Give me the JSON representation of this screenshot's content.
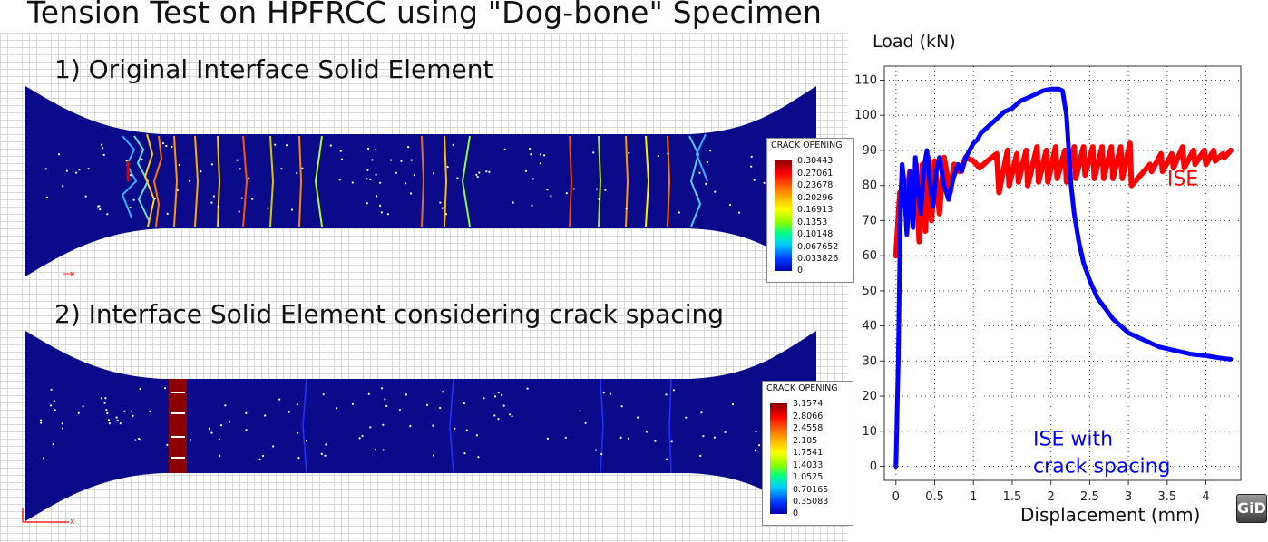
{
  "title": "Tension Test on HPFRCC using \"Dog-bone\" Specimen",
  "panel1": {
    "label": "1) Original Interface Solid Element",
    "legend_title": "CRACK OPENING",
    "legend_values": [
      "0.30443",
      "0.27061",
      "0.23678",
      "0.20296",
      "0.16913",
      "0.1353",
      "0.10148",
      "0.067652",
      "0.033826",
      "0"
    ]
  },
  "panel2": {
    "label": "2) Interface Solid Element considering crack spacing",
    "legend_title": "CRACK OPENING",
    "legend_values": [
      "3.1574",
      "2.8066",
      "2.4558",
      "2.105",
      "1.7541",
      "1.4033",
      "1.0525",
      "0.70165",
      "0.35083",
      "0"
    ]
  },
  "colors": {
    "specimen": "#0a0a8a",
    "ise": "#ff0000",
    "ise_cs": "#0000ff"
  },
  "badge": "GiD",
  "chart_data": {
    "type": "line",
    "xlabel": "Displacement (mm)",
    "ylabel": "Load (kN)",
    "xlim": [
      -0.15,
      4.45
    ],
    "ylim": [
      -4,
      114
    ],
    "xticks": [
      0,
      0.5,
      1,
      1.5,
      2,
      2.5,
      3,
      3.5,
      4
    ],
    "xtick_labels": [
      "0",
      "0.5",
      "1",
      "1.5",
      "2",
      "2.5",
      "3",
      "3.5",
      "4"
    ],
    "yticks": [
      0,
      10,
      20,
      30,
      40,
      50,
      60,
      70,
      80,
      90,
      100,
      110
    ],
    "ytick_labels": [
      "0",
      "10",
      "20",
      "30",
      "40",
      "50",
      "60",
      "70",
      "80",
      "90",
      "100",
      "110"
    ],
    "grid": true,
    "series": [
      {
        "name": "ISE",
        "label_lines": [
          "ISE"
        ],
        "label_at": [
          3.5,
          80
        ],
        "color": "#ff0000",
        "x": [
          0,
          0.05,
          0.12,
          0.18,
          0.22,
          0.26,
          0.3,
          0.34,
          0.38,
          0.42,
          0.46,
          0.5,
          0.56,
          0.62,
          0.7,
          0.75,
          0.82,
          0.9,
          1.0,
          1.08,
          1.18,
          1.3,
          1.33,
          1.44,
          1.46,
          1.56,
          1.58,
          1.68,
          1.7,
          1.82,
          1.84,
          1.94,
          1.96,
          2.06,
          2.08,
          2.18,
          2.2,
          2.3,
          2.32,
          2.42,
          2.44,
          2.54,
          2.56,
          2.66,
          2.68,
          2.78,
          2.8,
          2.9,
          2.92,
          3.02,
          3.04,
          3.28,
          3.3,
          3.42,
          3.44,
          3.56,
          3.58,
          3.7,
          3.72,
          3.84,
          3.86,
          3.98,
          4.0,
          4.1,
          4.12,
          4.22,
          4.24,
          4.32
        ],
        "y": [
          60,
          78,
          74,
          84,
          76,
          86,
          64,
          86,
          67,
          88,
          70,
          87,
          72,
          88,
          78,
          86,
          84,
          88,
          87,
          85,
          87,
          89,
          78,
          90,
          80,
          89,
          81,
          90,
          80,
          91,
          81,
          90,
          81,
          91,
          82,
          90,
          81,
          91,
          82,
          91,
          83,
          91,
          82,
          91,
          82,
          91,
          82,
          91,
          82,
          92,
          80,
          86,
          84,
          89,
          84,
          89,
          85,
          91,
          85,
          90,
          86,
          90,
          86,
          90,
          87,
          89,
          88,
          90
        ]
      },
      {
        "name": "ISE with crack spacing",
        "label_lines": [
          "ISE with",
          "crack spacing"
        ],
        "label_at": [
          1.77,
          6
        ],
        "color": "#0000ff",
        "x": [
          0,
          0.01,
          0.02,
          0.03,
          0.04,
          0.05,
          0.06,
          0.08,
          0.1,
          0.12,
          0.14,
          0.16,
          0.18,
          0.2,
          0.22,
          0.25,
          0.28,
          0.32,
          0.36,
          0.4,
          0.44,
          0.48,
          0.52,
          0.56,
          0.62,
          0.68,
          0.74,
          0.8,
          0.85,
          0.9,
          0.95,
          1.0,
          1.05,
          1.1,
          1.2,
          1.3,
          1.4,
          1.5,
          1.6,
          1.7,
          1.8,
          1.9,
          2.0,
          2.1,
          2.15,
          2.2,
          2.23,
          2.26,
          2.3,
          2.36,
          2.42,
          2.5,
          2.6,
          2.7,
          2.8,
          2.9,
          3.0,
          3.2,
          3.4,
          3.6,
          3.8,
          4.0,
          4.2,
          4.32
        ],
        "y": [
          0,
          10,
          20,
          30,
          45,
          60,
          75,
          86,
          82,
          74,
          66,
          72,
          84,
          76,
          68,
          88,
          80,
          72,
          85,
          90,
          80,
          74,
          84,
          88,
          80,
          76,
          82,
          86,
          84,
          88,
          90,
          92,
          93,
          95,
          97,
          99,
          101,
          102,
          104,
          105,
          106,
          107,
          107.5,
          107.5,
          107,
          100,
          90,
          80,
          72,
          64,
          58,
          53,
          48,
          45,
          42,
          40,
          38,
          36,
          34,
          33,
          32,
          31.5,
          30.8,
          30.5
        ]
      }
    ]
  }
}
